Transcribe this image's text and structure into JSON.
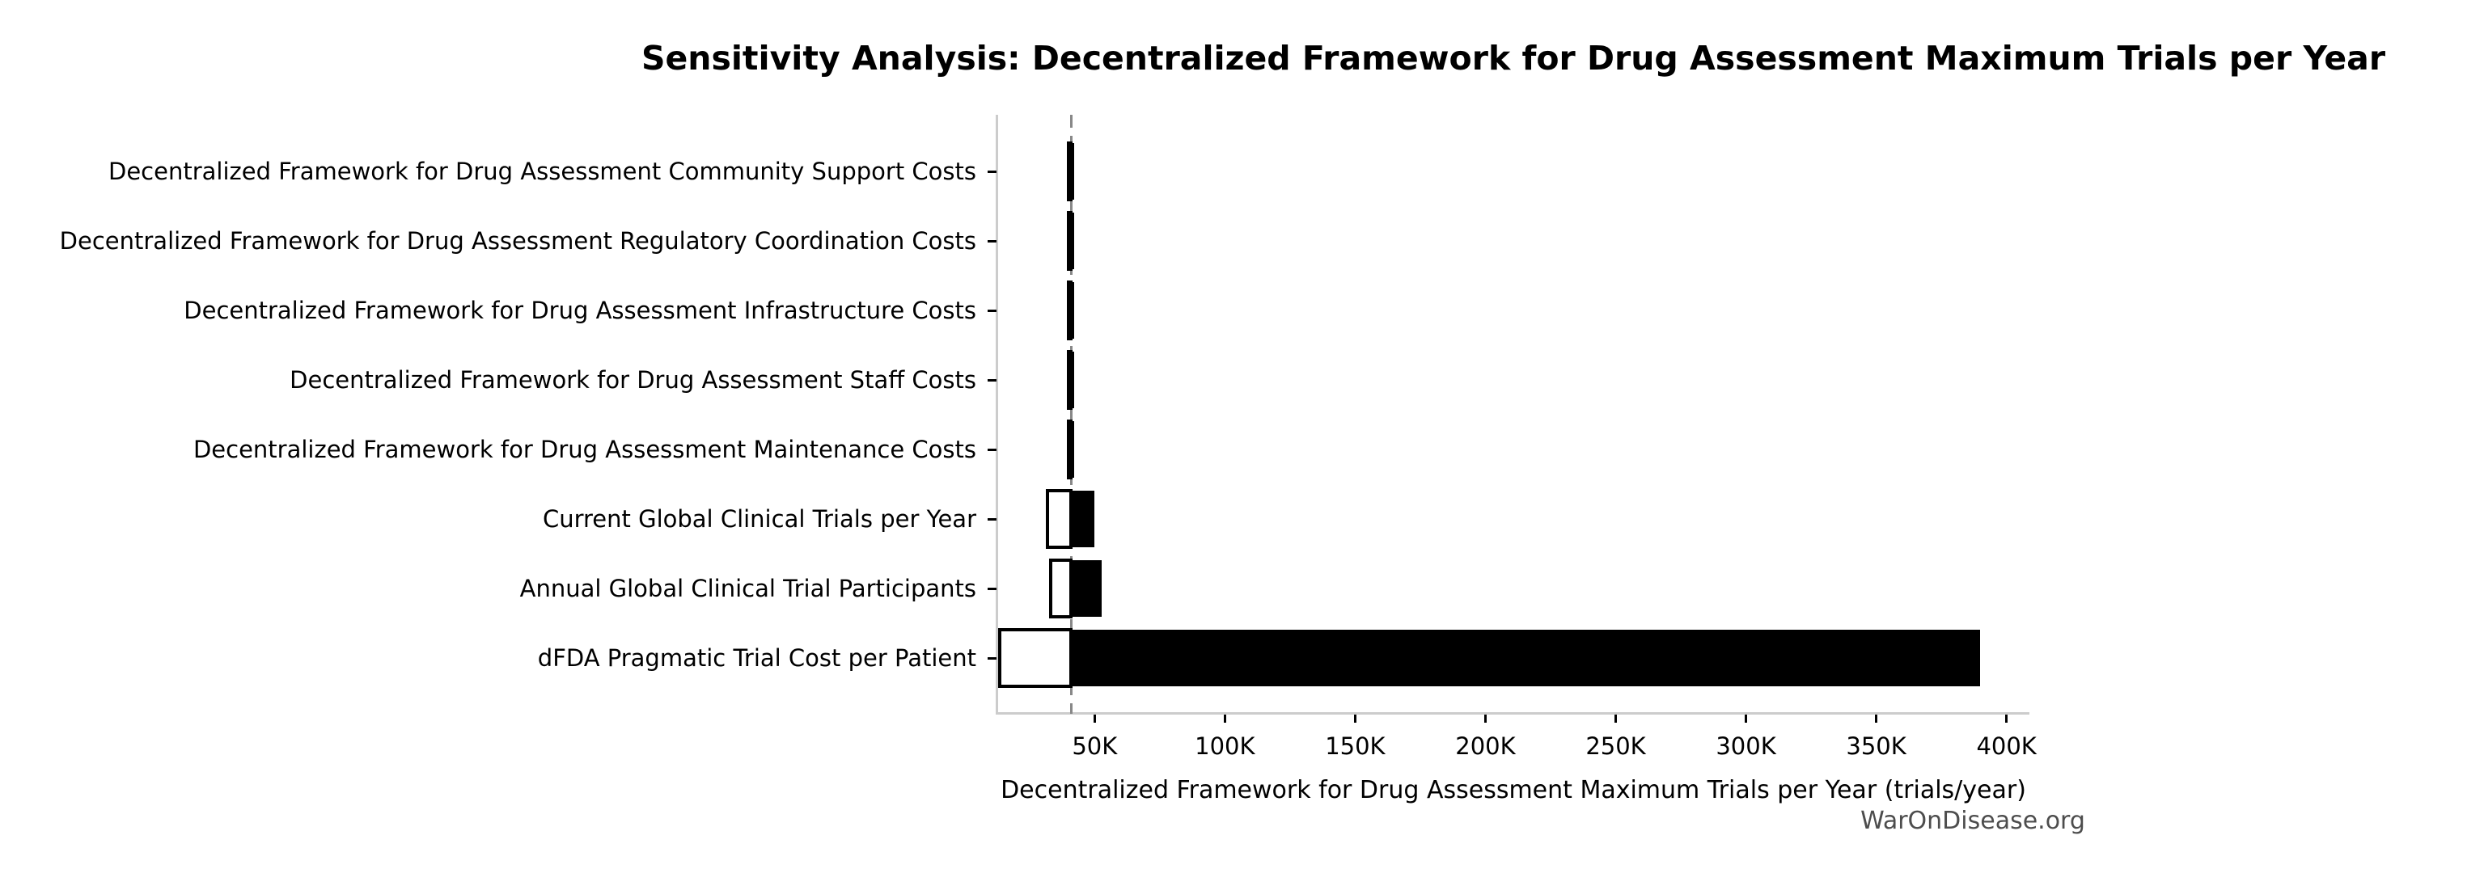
{
  "chart_data": {
    "type": "bar",
    "subtype": "tornado-horizontal",
    "title": "Sensitivity Analysis: Decentralized Framework for Drug Assessment Maximum Trials per Year",
    "xlabel": "Decentralized Framework for Drug Assessment Maximum Trials per Year (trials/year)",
    "watermark": "WarOnDisease.org",
    "base_value": 41000,
    "xlim": [
      12650,
      408800
    ],
    "grid": false,
    "legend": "none",
    "xticks": {
      "values": [
        50000,
        100000,
        150000,
        200000,
        250000,
        300000,
        350000,
        400000
      ],
      "labels": [
        "50K",
        "100K",
        "150K",
        "200K",
        "250K",
        "300K",
        "350K",
        "400K"
      ]
    },
    "rows": [
      {
        "label": "Decentralized Framework for Drug Assessment Community Support Costs",
        "low": 39900,
        "high": 42200
      },
      {
        "label": "Decentralized Framework for Drug Assessment Regulatory Coordination Costs",
        "low": 39900,
        "high": 42200
      },
      {
        "label": "Decentralized Framework for Drug Assessment Infrastructure Costs",
        "low": 39900,
        "high": 42200
      },
      {
        "label": "Decentralized Framework for Drug Assessment Staff Costs",
        "low": 39900,
        "high": 42200
      },
      {
        "label": "Decentralized Framework for Drug Assessment Maintenance Costs",
        "low": 39900,
        "high": 42200
      },
      {
        "label": "Current Global Clinical Trials per Year",
        "low": 31900,
        "high": 50000
      },
      {
        "label": "Annual Global Clinical Trial Participants",
        "low": 33100,
        "high": 52800
      },
      {
        "label": "dFDA Pragmatic Trial Cost per Patient",
        "low": 13500,
        "high": 390000
      }
    ],
    "colors": {
      "low_side_fill": "#ffffff",
      "high_side_fill": "#000000",
      "bar_edge": "#000000",
      "baseline": "#888888",
      "spine": "#cccccc",
      "tick": "#000000",
      "watermark": "#4d4d4d"
    }
  }
}
